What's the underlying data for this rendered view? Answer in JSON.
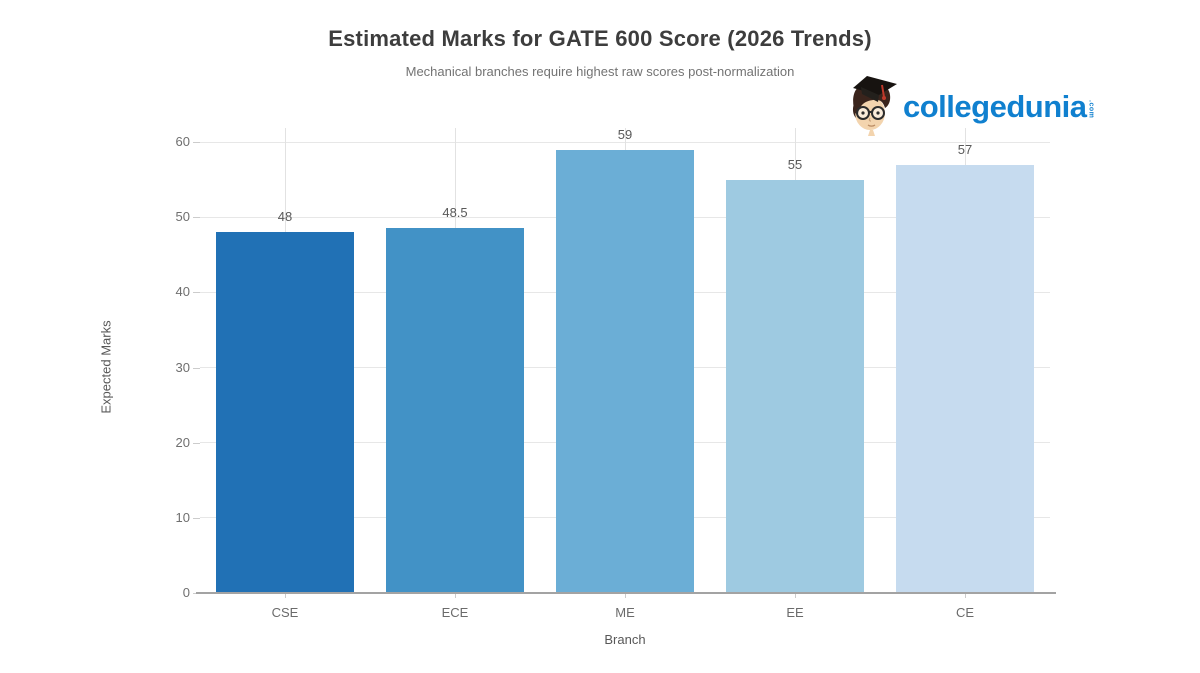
{
  "header": {
    "title": "Estimated Marks for GATE 600 Score (2026 Trends)",
    "subtitle": "Mechanical branches require highest raw scores post-normalization"
  },
  "logo": {
    "brand": "collegedunia",
    "tld": ".com",
    "brand_color": "#1080cf",
    "mascot_icon": "collegedunia-mascot-icon"
  },
  "chart_data": {
    "type": "bar",
    "categories": [
      "CSE",
      "ECE",
      "ME",
      "EE",
      "CE"
    ],
    "values": [
      48,
      48.5,
      59,
      55,
      57
    ],
    "value_labels": [
      "48",
      "48.5",
      "59",
      "55",
      "57"
    ],
    "bar_colors": [
      "#2171b5",
      "#4292c6",
      "#6baed6",
      "#9ecae1",
      "#c6dbef"
    ],
    "title": "Estimated Marks for GATE 600 Score (2026 Trends)",
    "subtitle": "Mechanical branches require highest raw scores post-normalization",
    "xlabel": "Branch",
    "ylabel": "Expected Marks",
    "ylim": [
      0,
      60
    ],
    "yticks": [
      0,
      10,
      20,
      30,
      40,
      50,
      60
    ],
    "grid": true,
    "legend": "none",
    "gridline_color": "#e7e7e7",
    "axis_line_color": "#a3a3a3"
  }
}
